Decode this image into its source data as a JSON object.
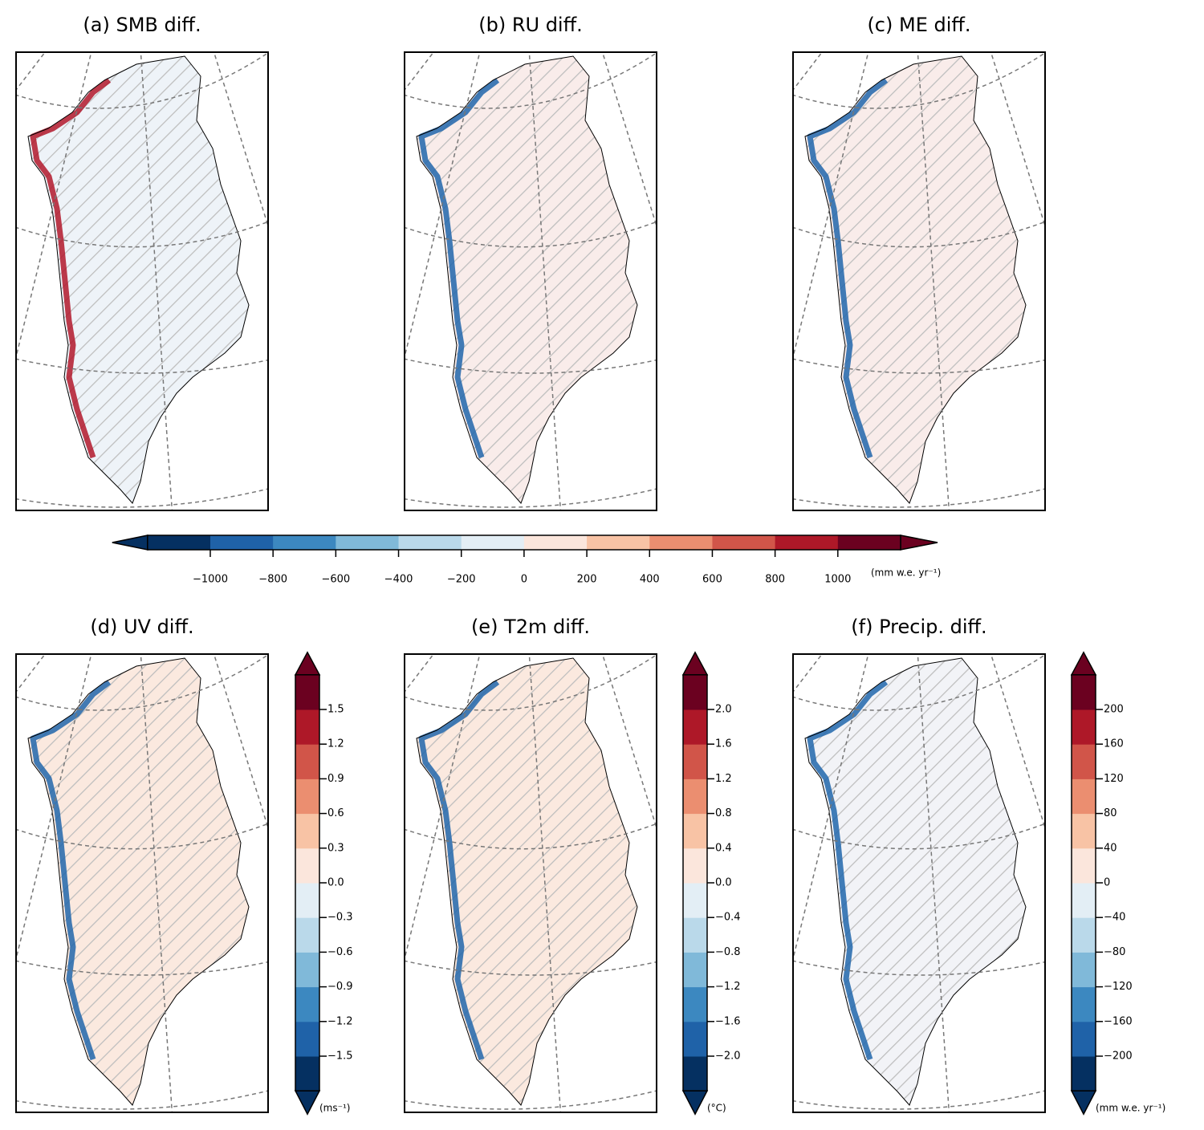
{
  "panels": [
    {
      "title": "(a) SMB diff."
    },
    {
      "title": "(b) RU diff."
    },
    {
      "title": "(c) ME diff."
    },
    {
      "title": "(d) UV diff."
    },
    {
      "title": "(e) T2m diff."
    },
    {
      "title": "(f) Precip. diff."
    }
  ],
  "colorbars": [
    {
      "units": "(mm w.e. yr⁻¹)",
      "lim": [
        -1200,
        1200
      ],
      "colors": [
        "#053061",
        "#1f62a8",
        "#3c88c0",
        "#80b9d9",
        "#bad9ea",
        "#e3eef5",
        "#fbe6dc",
        "#f8c3a5",
        "#eb8e70",
        "#d15549",
        "#ae1828",
        "#6b0120"
      ],
      "ticks": [
        {
          "value": -1000,
          "label": "−1000"
        },
        {
          "value": -800,
          "label": "−800"
        },
        {
          "value": -600,
          "label": "−600"
        },
        {
          "value": -400,
          "label": "−400"
        },
        {
          "value": -200,
          "label": "−200"
        },
        {
          "value": 0,
          "label": "0"
        },
        {
          "value": 200,
          "label": "200"
        },
        {
          "value": 400,
          "label": "400"
        },
        {
          "value": 600,
          "label": "600"
        },
        {
          "value": 800,
          "label": "800"
        },
        {
          "value": 1000,
          "label": "1000"
        }
      ]
    },
    {
      "units": "(ms⁻¹)",
      "lim": [
        -1.8,
        1.8
      ],
      "colors": [
        "#053061",
        "#1f62a8",
        "#3c88c0",
        "#80b9d9",
        "#bad9ea",
        "#e3eef5",
        "#fbe6dc",
        "#f8c3a5",
        "#eb8e70",
        "#d15549",
        "#ae1828",
        "#6b0120"
      ],
      "ticks": [
        {
          "value": -1.5,
          "label": "−1.5"
        },
        {
          "value": -1.2,
          "label": "−1.2"
        },
        {
          "value": -0.9,
          "label": "−0.9"
        },
        {
          "value": -0.6,
          "label": "−0.6"
        },
        {
          "value": -0.3,
          "label": "−0.3"
        },
        {
          "value": 0,
          "label": "0.0"
        },
        {
          "value": 0.3,
          "label": "0.3"
        },
        {
          "value": 0.6,
          "label": "0.6"
        },
        {
          "value": 0.9,
          "label": "0.9"
        },
        {
          "value": 1.2,
          "label": "1.2"
        },
        {
          "value": 1.5,
          "label": "1.5"
        }
      ]
    },
    {
      "units": "(°C)",
      "lim": [
        -2.4,
        2.4
      ],
      "colors": [
        "#053061",
        "#1f62a8",
        "#3c88c0",
        "#80b9d9",
        "#bad9ea",
        "#e3eef5",
        "#fbe6dc",
        "#f8c3a5",
        "#eb8e70",
        "#d15549",
        "#ae1828",
        "#6b0120"
      ],
      "ticks": [
        {
          "value": -2.0,
          "label": "−2.0"
        },
        {
          "value": -1.6,
          "label": "−1.6"
        },
        {
          "value": -1.2,
          "label": "−1.2"
        },
        {
          "value": -0.8,
          "label": "−0.8"
        },
        {
          "value": -0.4,
          "label": "−0.4"
        },
        {
          "value": 0,
          "label": "0.0"
        },
        {
          "value": 0.4,
          "label": "0.4"
        },
        {
          "value": 0.8,
          "label": "0.8"
        },
        {
          "value": 1.2,
          "label": "1.2"
        },
        {
          "value": 1.6,
          "label": "1.6"
        },
        {
          "value": 2.0,
          "label": "2.0"
        }
      ]
    },
    {
      "units": "(mm w.e. yr⁻¹)",
      "lim": [
        -240,
        240
      ],
      "colors": [
        "#053061",
        "#1f62a8",
        "#3c88c0",
        "#80b9d9",
        "#bad9ea",
        "#e3eef5",
        "#fbe6dc",
        "#f8c3a5",
        "#eb8e70",
        "#d15549",
        "#ae1828",
        "#6b0120"
      ],
      "ticks": [
        {
          "value": -200,
          "label": "−200"
        },
        {
          "value": -160,
          "label": "−160"
        },
        {
          "value": -120,
          "label": "−120"
        },
        {
          "value": -80,
          "label": "−80"
        },
        {
          "value": -40,
          "label": "−40"
        },
        {
          "value": 0,
          "label": "0"
        },
        {
          "value": 40,
          "label": "40"
        },
        {
          "value": 80,
          "label": "80"
        },
        {
          "value": 120,
          "label": "120"
        },
        {
          "value": 160,
          "label": "160"
        },
        {
          "value": 200,
          "label": "200"
        }
      ]
    }
  ]
}
